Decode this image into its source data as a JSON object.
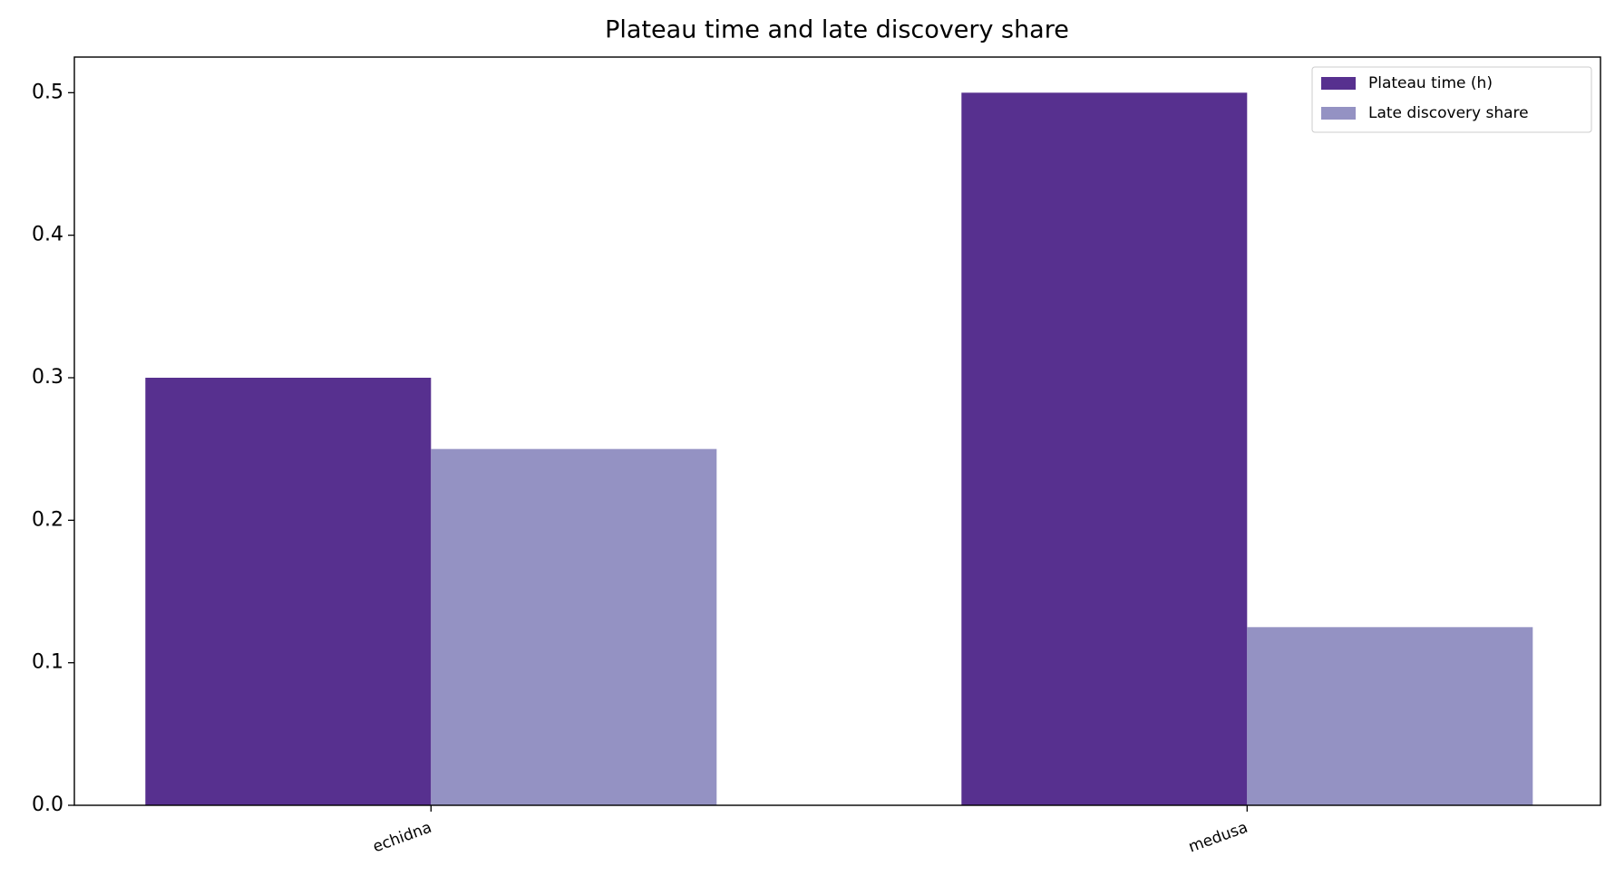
{
  "chart_data": {
    "type": "bar",
    "title": "Plateau time and late discovery share",
    "categories": [
      "echidna",
      "medusa"
    ],
    "series": [
      {
        "name": "Plateau time (h)",
        "color": "#57308f",
        "values": [
          0.3,
          0.5
        ]
      },
      {
        "name": "Late discovery share",
        "color": "#9492c3",
        "values": [
          0.25,
          0.125
        ]
      }
    ],
    "ylim": [
      0,
      0.525
    ],
    "yticks": [
      {
        "value": 0,
        "label": "0.0"
      },
      0.1,
      0.2,
      0.3,
      0.4,
      0.5
    ],
    "legend": "upper right"
  }
}
